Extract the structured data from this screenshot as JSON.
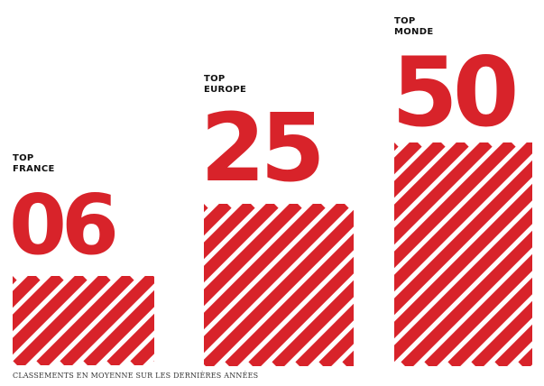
{
  "chart_data": {
    "type": "bar",
    "categories": [
      "TOP FRANCE",
      "TOP EUROPE",
      "TOP MONDE"
    ],
    "labels": [
      [
        "TOP",
        "FRANCE"
      ],
      [
        "TOP",
        "EUROPE"
      ],
      [
        "TOP",
        "MONDE"
      ]
    ],
    "values": [
      6,
      25,
      50
    ],
    "value_labels": [
      "06",
      "25",
      "50"
    ],
    "caption": "CLASSEMENTS EN MOYENNE SUR LES DERNIÈRES ANNÉES",
    "colors": {
      "accent": "#d8232a",
      "stripe_bg": "#ffffff",
      "text": "#111111"
    }
  }
}
